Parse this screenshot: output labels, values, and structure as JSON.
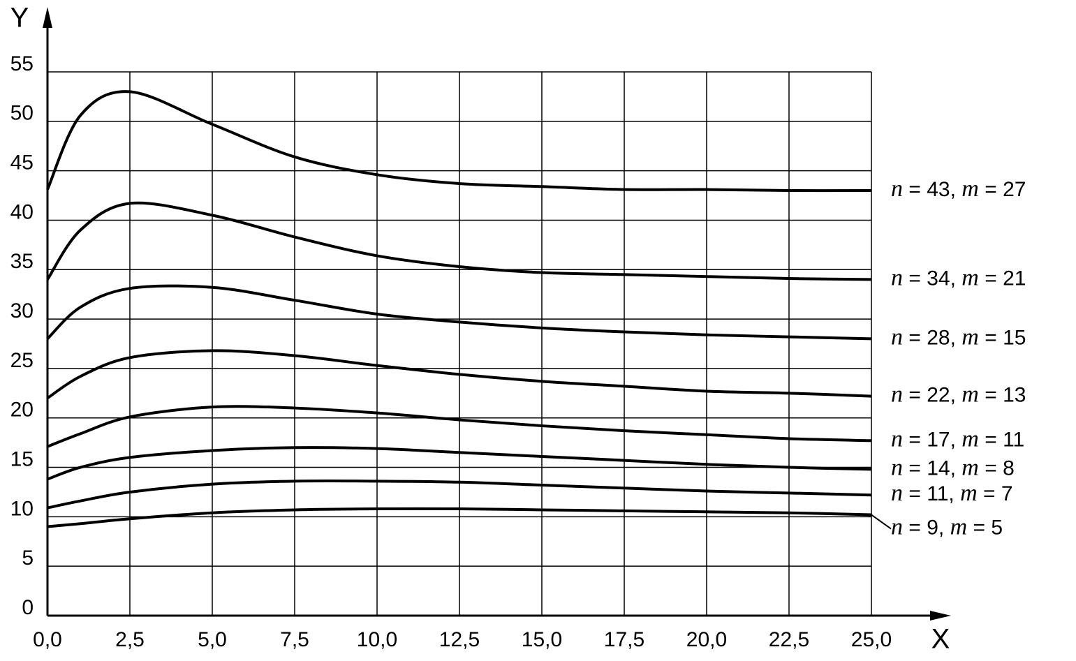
{
  "chart_data": {
    "type": "line",
    "x_label": "X",
    "y_label": "Y",
    "x": [
      0,
      1,
      2.5,
      5,
      7.5,
      10,
      12.5,
      15,
      17.5,
      20,
      22.5,
      25
    ],
    "series": [
      {
        "name": "n = 43, m = 27",
        "color": "#000000",
        "values": [
          43.1,
          50.6,
          53.0,
          49.7,
          46.4,
          44.6,
          43.7,
          43.4,
          43.1,
          43.1,
          43.0,
          43.0
        ]
      },
      {
        "name": "n = 34, m = 21",
        "color": "#000000",
        "values": [
          34.0,
          39.0,
          41.7,
          40.5,
          38.3,
          36.4,
          35.3,
          34.7,
          34.5,
          34.3,
          34.1,
          34.0
        ]
      },
      {
        "name": "n = 28, m = 15",
        "color": "#000000",
        "values": [
          28.0,
          31.2,
          33.1,
          33.2,
          31.9,
          30.5,
          29.7,
          29.1,
          28.7,
          28.4,
          28.2,
          28.0
        ]
      },
      {
        "name": "n = 22, m = 13",
        "color": "#000000",
        "values": [
          22.0,
          24.2,
          26.1,
          26.8,
          26.3,
          25.3,
          24.4,
          23.7,
          23.2,
          22.7,
          22.5,
          22.2
        ]
      },
      {
        "name": "n = 17, m = 11",
        "color": "#000000",
        "values": [
          17.1,
          18.4,
          20.1,
          21.1,
          21.0,
          20.5,
          19.8,
          19.2,
          18.7,
          18.3,
          17.9,
          17.7
        ]
      },
      {
        "name": "n = 14, m = 8",
        "color": "#000000",
        "values": [
          13.8,
          15.0,
          16.0,
          16.7,
          17.0,
          16.9,
          16.5,
          16.1,
          15.7,
          15.3,
          15.0,
          14.8
        ]
      },
      {
        "name": "n = 11, m = 7",
        "color": "#000000",
        "values": [
          10.9,
          11.6,
          12.5,
          13.3,
          13.6,
          13.6,
          13.5,
          13.2,
          12.9,
          12.6,
          12.4,
          12.2
        ]
      },
      {
        "name": "n = 9, m = 5",
        "color": "#000000",
        "values": [
          9.0,
          9.3,
          9.8,
          10.4,
          10.7,
          10.8,
          10.8,
          10.7,
          10.6,
          10.5,
          10.4,
          10.2
        ]
      }
    ],
    "xlim": [
      0,
      25
    ],
    "ylim": [
      0,
      55
    ],
    "xticks": [
      {
        "value": 0,
        "label": "0,0"
      },
      {
        "value": 2.5,
        "label": "2,5"
      },
      {
        "value": 5,
        "label": "5,0"
      },
      {
        "value": 7.5,
        "label": "7,5"
      },
      {
        "value": 10,
        "label": "10,0"
      },
      {
        "value": 12.5,
        "label": "12,5"
      },
      {
        "value": 15,
        "label": "15,0"
      },
      {
        "value": 17.5,
        "label": "17,5"
      },
      {
        "value": 20,
        "label": "20,0"
      },
      {
        "value": 22.5,
        "label": "22,5"
      },
      {
        "value": 25,
        "label": "25,0"
      }
    ],
    "yticks": [
      0,
      5,
      10,
      15,
      20,
      25,
      30,
      35,
      40,
      45,
      50,
      55
    ],
    "grid": true
  }
}
